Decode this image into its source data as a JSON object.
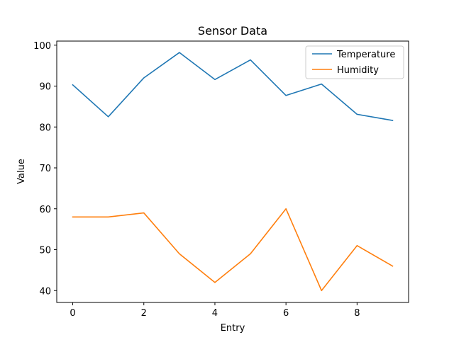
{
  "chart_data": {
    "type": "line",
    "title": "Sensor Data",
    "xlabel": "Entry",
    "ylabel": "Value",
    "x": [
      0,
      1,
      2,
      3,
      4,
      5,
      6,
      7,
      8,
      9
    ],
    "xlim": [
      -0.45,
      9.45
    ],
    "ylim": [
      37.1,
      101.0
    ],
    "xticks": [
      0,
      2,
      4,
      6,
      8
    ],
    "yticks": [
      40,
      50,
      60,
      70,
      80,
      90,
      100
    ],
    "grid": false,
    "legend_position": "top-right",
    "series": [
      {
        "name": "Temperature",
        "color": "#1f77b4",
        "values": [
          90.3,
          82.5,
          92.0,
          98.2,
          91.6,
          96.4,
          87.7,
          90.5,
          83.1,
          81.6
        ]
      },
      {
        "name": "Humidity",
        "color": "#ff7f0e",
        "values": [
          58,
          58,
          59,
          49,
          42,
          49,
          60,
          40,
          51,
          46
        ]
      }
    ]
  }
}
